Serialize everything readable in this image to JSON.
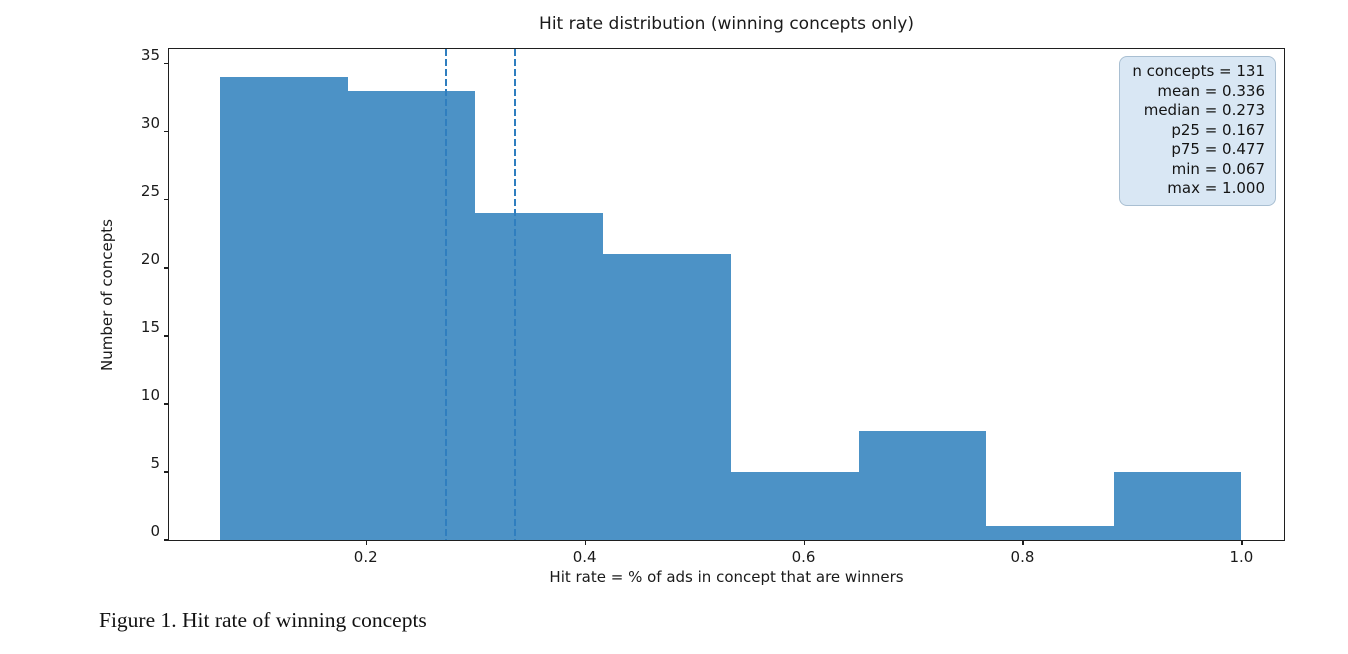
{
  "figure": {
    "caption": "Figure 1. Hit rate of winning concepts"
  },
  "chart_data": {
    "type": "bar",
    "subtype": "histogram",
    "title": "Hit rate distribution (winning concepts only)",
    "xlabel": "Hit rate = % of ads in concept that are winners",
    "ylabel": "Number of concepts",
    "bin_edges": [
      0.067,
      0.1836,
      0.3003,
      0.4169,
      0.5336,
      0.6503,
      0.7669,
      0.8836,
      1.0
    ],
    "counts": [
      34,
      33,
      24,
      21,
      5,
      8,
      1,
      5
    ],
    "xlim": [
      0.0203,
      1.038
    ],
    "ylim": [
      0,
      36.0
    ],
    "xticks": [
      0.2,
      0.4,
      0.6,
      0.8,
      1.0
    ],
    "yticks": [
      0,
      5,
      10,
      15,
      20,
      25,
      30,
      35
    ],
    "grid": false,
    "legend_position": "none",
    "vlines": [
      {
        "name": "median-line",
        "x": 0.273,
        "style": "dashed"
      },
      {
        "name": "mean-line",
        "x": 0.336,
        "style": "dashed"
      }
    ],
    "colors": {
      "bar": "#4c92c6",
      "vline": "#2f7ebf",
      "stats_box_bg": "#d9e7f4",
      "stats_box_border": "#a9bfd2",
      "spine": "#1f1f1f"
    },
    "stats_box_lines": [
      "n concepts = 131",
      "mean = 0.336",
      "median = 0.273",
      "p25 = 0.167",
      "p75 = 0.477",
      "min = 0.067",
      "max = 1.000"
    ]
  }
}
